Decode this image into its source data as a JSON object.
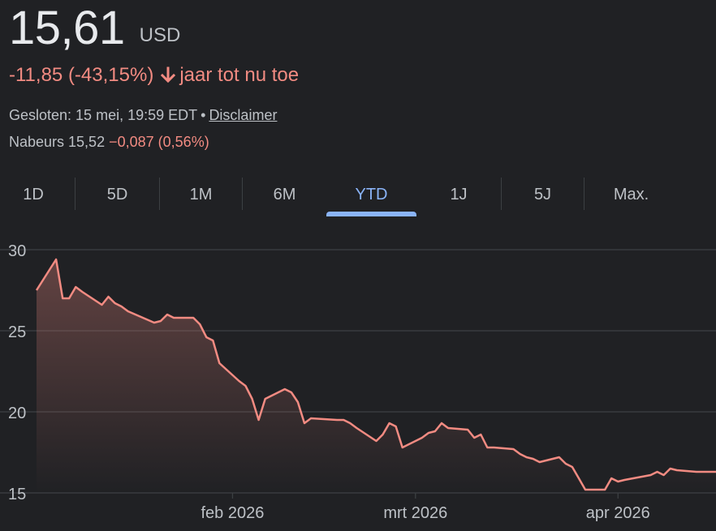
{
  "quote": {
    "price": "15,61",
    "currency": "USD",
    "change": "-11,85 (-43,15%)",
    "change_period": "jaar tot nu toe",
    "closed_label": "Gesloten: 15 mei, 19:59 EDT",
    "separator": "•",
    "disclaimer": "Disclaimer",
    "after_hours_label": "Nabeurs 15,52",
    "after_hours_change": "−0,087 (0,56%)"
  },
  "icons": {
    "change_direction": "arrow-down-icon"
  },
  "colors": {
    "background": "#202124",
    "negative": "#f28b82",
    "accent": "#8ab4f8",
    "text_primary": "#e8eaed",
    "text_secondary": "#bdc1c6",
    "gridline": "#3c4043"
  },
  "tabs": [
    {
      "label": "1D",
      "active": false
    },
    {
      "label": "5D",
      "active": false
    },
    {
      "label": "1M",
      "active": false
    },
    {
      "label": "6M",
      "active": false
    },
    {
      "label": "YTD",
      "active": true
    },
    {
      "label": "1J",
      "active": false
    },
    {
      "label": "5J",
      "active": false
    },
    {
      "label": "Max.",
      "active": false
    }
  ],
  "chart_data": {
    "type": "area",
    "title": "",
    "xlabel": "",
    "ylabel": "",
    "ylim": [
      14.5,
      30
    ],
    "y_ticks": [
      30,
      25,
      20,
      15
    ],
    "y_tick_labels": [
      "30",
      "25",
      "20",
      "15"
    ],
    "x_ticks": [
      "2026-02-01",
      "2026-03-01",
      "2026-04-01"
    ],
    "x_tick_labels": [
      "feb 2026",
      "mrt 2026",
      "apr 2026"
    ],
    "grid": true,
    "line_color": "#f28b82",
    "series": [
      {
        "x": [
          "2026-01-02",
          "2026-01-05",
          "2026-01-06",
          "2026-01-07",
          "2026-01-08",
          "2026-01-09",
          "2026-01-12",
          "2026-01-13",
          "2026-01-14",
          "2026-01-15",
          "2026-01-16",
          "2026-01-20",
          "2026-01-21",
          "2026-01-22",
          "2026-01-23",
          "2026-01-26",
          "2026-01-27",
          "2026-01-28",
          "2026-01-29",
          "2026-01-30",
          "2026-02-02",
          "2026-02-03",
          "2026-02-04",
          "2026-02-05",
          "2026-02-06",
          "2026-02-09",
          "2026-02-10",
          "2026-02-11",
          "2026-02-12",
          "2026-02-13",
          "2026-02-17",
          "2026-02-18",
          "2026-02-19",
          "2026-02-20",
          "2026-02-23",
          "2026-02-24",
          "2026-02-25",
          "2026-02-26",
          "2026-02-27",
          "2026-03-02",
          "2026-03-03",
          "2026-03-04",
          "2026-03-05",
          "2026-03-06",
          "2026-03-09",
          "2026-03-10",
          "2026-03-11",
          "2026-03-12",
          "2026-03-13",
          "2026-03-16",
          "2026-03-17",
          "2026-03-18",
          "2026-03-19",
          "2026-03-20",
          "2026-03-23",
          "2026-03-24",
          "2026-03-25",
          "2026-03-26",
          "2026-03-27",
          "2026-03-30",
          "2026-03-31",
          "2026-04-01",
          "2026-04-02",
          "2026-04-06",
          "2026-04-07",
          "2026-04-08",
          "2026-04-09",
          "2026-04-10",
          "2026-04-13",
          "2026-04-14",
          "2026-04-15",
          "2026-04-16"
        ],
        "values": [
          27.5,
          29.4,
          27.0,
          27.0,
          27.7,
          27.4,
          26.6,
          27.1,
          26.7,
          26.5,
          26.2,
          25.5,
          25.6,
          26.0,
          25.8,
          25.8,
          25.4,
          24.6,
          24.4,
          23.0,
          21.9,
          21.6,
          20.8,
          19.5,
          20.8,
          21.4,
          21.2,
          20.6,
          19.3,
          19.6,
          19.5,
          19.5,
          19.3,
          19.0,
          18.2,
          18.6,
          19.3,
          19.1,
          17.8,
          18.4,
          18.7,
          18.8,
          19.3,
          19.0,
          18.9,
          18.4,
          18.6,
          17.8,
          17.8,
          17.7,
          17.4,
          17.2,
          17.1,
          16.9,
          17.2,
          16.8,
          16.6,
          15.9,
          15.2,
          15.2,
          15.9,
          15.7,
          15.8,
          16.1,
          16.3,
          16.1,
          16.5,
          16.4,
          16.3,
          16.3,
          16.3,
          16.3
        ]
      }
    ]
  }
}
